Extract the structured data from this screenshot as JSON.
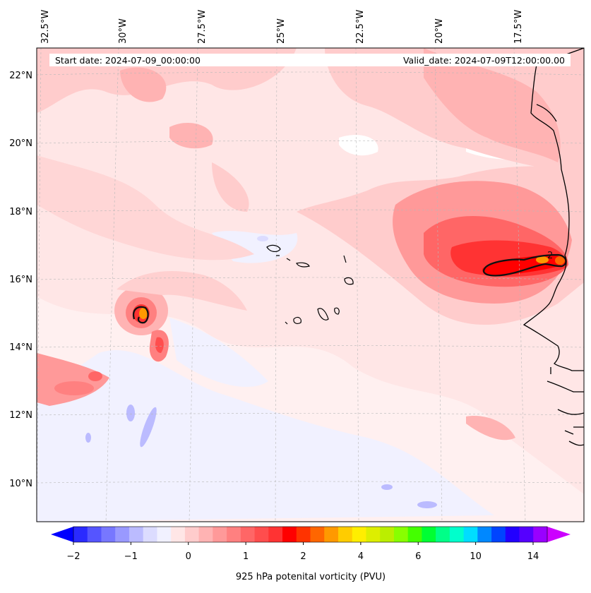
{
  "map": {
    "header": {
      "start_date": "Start date: 2024-07-09_00:00:00",
      "valid_date": "Valid_date: 2024-07-09T12:00:00.00"
    },
    "lon_labels": [
      "32.5°W",
      "30°W",
      "27.5°W",
      "25°W",
      "22.5°W",
      "20°W",
      "17.5°W"
    ],
    "lat_labels": [
      "22°N",
      "20°N",
      "18°N",
      "16°N",
      "14°N",
      "12°N",
      "10°N"
    ],
    "contour_label": "2",
    "colorbar": {
      "title": "925 hPa potenital vorticity (PVU)",
      "tick_labels": [
        "−2",
        "−1",
        "0",
        "1",
        "2",
        "4",
        "6",
        "10",
        "14"
      ],
      "colors": [
        "#0000ff",
        "#2a2aff",
        "#5555ff",
        "#7777ff",
        "#9999ff",
        "#bbbbff",
        "#dcdcff",
        "#f1f1ff",
        "#ffe6e6",
        "#ffcccc",
        "#ffb3b3",
        "#ff9999",
        "#ff8080",
        "#ff6666",
        "#ff4d4d",
        "#ff3333",
        "#ff0000",
        "#ff3300",
        "#ff6600",
        "#ff9900",
        "#ffcc00",
        "#ffee00",
        "#ddee00",
        "#bbee00",
        "#88ff00",
        "#44ff00",
        "#00ff33",
        "#00ff88",
        "#00ffcc",
        "#00ddff",
        "#0088ff",
        "#0044ff",
        "#2200ff",
        "#5500ff",
        "#9900ff",
        "#cc00ff"
      ]
    }
  }
}
